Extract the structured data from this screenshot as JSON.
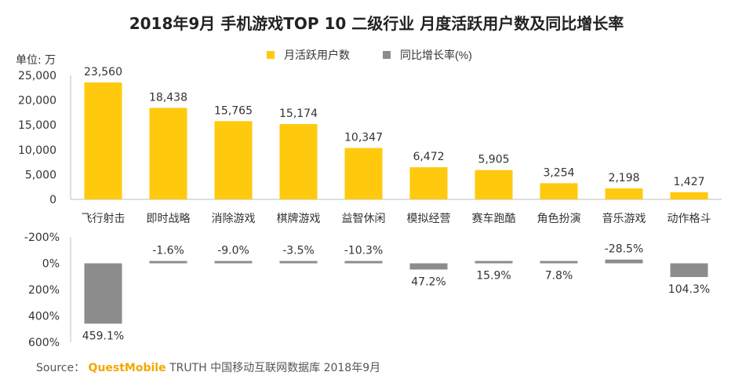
{
  "title": "2018年9月 手机游戏TOP 10 二级行业 月度活跃用户数及同比增长率",
  "unit_label": "单位: 万",
  "legend": {
    "mau": "月活跃用户数",
    "growth": "同比增长率(%)"
  },
  "colors": {
    "mau": "#FFC90E",
    "growth": "#8C8C8C",
    "axis": "#bfbfbf",
    "text": "#333333"
  },
  "source": {
    "prefix": "Source：",
    "brand": "QuestMobile",
    "rest": "TRUTH 中国移动互联网数据库 2018年9月"
  },
  "chart_data": [
    {
      "type": "bar",
      "categories": [
        "飞行射击",
        "即时战略",
        "消除游戏",
        "棋牌游戏",
        "益智休闲",
        "模拟经营",
        "赛车跑酷",
        "角色扮演",
        "音乐游戏",
        "动作格斗"
      ],
      "series": [
        {
          "name": "月活跃用户数",
          "values": [
            23560,
            18438,
            15765,
            15174,
            10347,
            6472,
            5905,
            3254,
            2198,
            1427
          ]
        }
      ],
      "value_labels": [
        "23,560",
        "18,438",
        "15,765",
        "15,174",
        "10,347",
        "6,472",
        "5,905",
        "3,254",
        "2,198",
        "1,427"
      ],
      "ylim": [
        0,
        25000
      ],
      "yticks": [
        "0",
        "5,000",
        "10,000",
        "15,000",
        "20,000",
        "25,000"
      ],
      "grid": false
    },
    {
      "type": "bar",
      "categories": [
        "飞行射击",
        "即时战略",
        "消除游戏",
        "棋牌游戏",
        "益智休闲",
        "模拟经营",
        "赛车跑酷",
        "角色扮演",
        "音乐游戏",
        "动作格斗"
      ],
      "series": [
        {
          "name": "同比增长率(%)",
          "values": [
            459.1,
            -1.6,
            -9.0,
            -3.5,
            -10.3,
            47.2,
            15.9,
            7.8,
            -28.5,
            104.3
          ]
        }
      ],
      "value_labels": [
        "459.1%",
        "-1.6%",
        "-9.0%",
        "-3.5%",
        "-10.3%",
        "47.2%",
        "15.9%",
        "7.8%",
        "-28.5%",
        "104.3%"
      ],
      "ylim": [
        -200,
        600
      ],
      "y_inverted": true,
      "yticks": [
        "-200%",
        "0%",
        "200%",
        "400%",
        "600%"
      ],
      "grid": false
    }
  ]
}
